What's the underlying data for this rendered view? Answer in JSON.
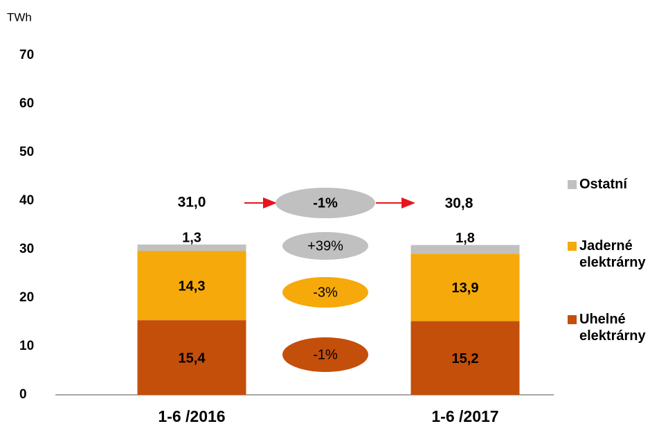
{
  "chart_data": {
    "type": "stacked_bar",
    "y_label": "TWh",
    "categories": [
      "1-6 /2016",
      "1-6 /2017"
    ],
    "series": [
      {
        "name": "Uhelné elektrárny",
        "color": "#c34f0b",
        "values": [
          15.4,
          15.2
        ],
        "value_labels": [
          "15,4",
          "15,2"
        ]
      },
      {
        "name": "Jaderné elektrárny",
        "color": "#f5a90a",
        "values": [
          14.3,
          13.9
        ],
        "value_labels": [
          "14,3",
          "13,9"
        ]
      },
      {
        "name": "Ostatní",
        "color": "#c0c0c0",
        "values": [
          1.3,
          1.8
        ],
        "value_labels": [
          "1,3",
          "1,8"
        ]
      }
    ],
    "totals": {
      "values": [
        31.0,
        30.8
      ],
      "value_labels": [
        "31,0",
        "30,8"
      ]
    },
    "annotations": [
      {
        "text": "-1%",
        "color": "#c0c0c0"
      },
      {
        "text": "+39%",
        "color": "#c0c0c0"
      },
      {
        "text": "-3%",
        "color": "#f5a90a"
      },
      {
        "text": "-1%",
        "color": "#c34f0b"
      }
    ],
    "ylim": [
      0,
      70
    ],
    "yticks": [
      0,
      10,
      20,
      30,
      40,
      50,
      60,
      70
    ]
  }
}
